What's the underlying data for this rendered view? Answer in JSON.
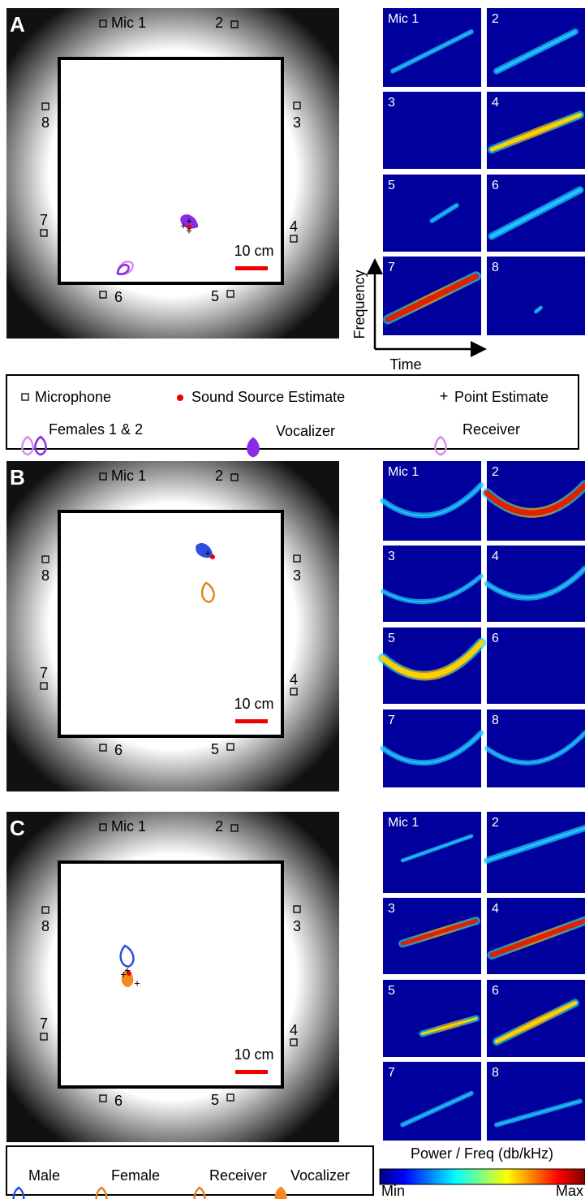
{
  "panels": [
    {
      "label": "A",
      "mic_labels": [
        "Mic 1",
        "2",
        "3",
        "4",
        "5",
        "6",
        "7",
        "8"
      ],
      "scale_bar": "10 cm",
      "spectrogram_labels": [
        "Mic 1",
        "2",
        "3",
        "4",
        "5",
        "6",
        "7",
        "8"
      ],
      "y_axis_label": "Frequency",
      "x_axis_label": "Time"
    },
    {
      "label": "B",
      "mic_labels": [
        "Mic 1",
        "2",
        "3",
        "4",
        "5",
        "6",
        "7",
        "8"
      ],
      "scale_bar": "10 cm",
      "spectrogram_labels": [
        "Mic 1",
        "2",
        "3",
        "4",
        "5",
        "6",
        "7",
        "8"
      ]
    },
    {
      "label": "C",
      "mic_labels": [
        "Mic 1",
        "2",
        "3",
        "4",
        "5",
        "6",
        "7",
        "8"
      ],
      "scale_bar": "10 cm",
      "spectrogram_labels": [
        "Mic 1",
        "2",
        "3",
        "4",
        "5",
        "6",
        "7",
        "8"
      ]
    }
  ],
  "legend_top": {
    "items": [
      "Microphone",
      "Sound Source Estimate",
      "Point Estimate",
      "Females 1 & 2",
      "Vocalizer",
      "Receiver"
    ]
  },
  "legend_bottom": {
    "items": [
      "Male",
      "Female",
      "Receiver",
      "Vocalizer"
    ]
  },
  "colorbar": {
    "title": "Power / Freq (db/kHz)",
    "min_label": "Min",
    "max_label": "Max"
  }
}
